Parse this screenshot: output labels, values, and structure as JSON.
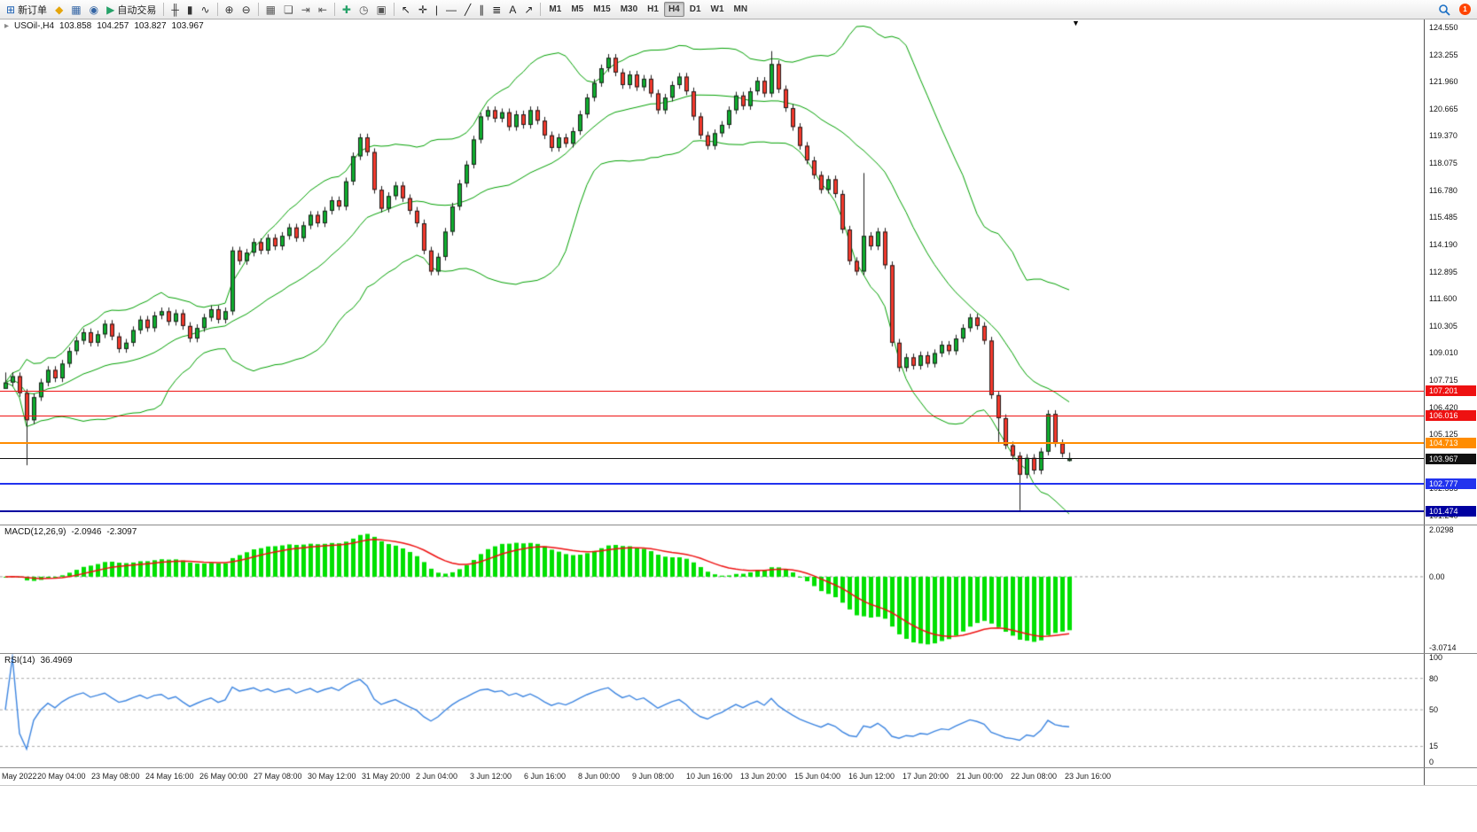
{
  "toolbar": {
    "groups": [
      {
        "name": "trade",
        "items": [
          {
            "name": "new-order-button",
            "label": "新订单",
            "glyph": "⊞",
            "color": "#1a5fb4"
          },
          {
            "name": "metaeditor-icon",
            "glyph": "◆",
            "color": "#e5a50a"
          },
          {
            "name": "charts-icon",
            "glyph": "▦",
            "color": "#3465a4"
          },
          {
            "name": "alerts-icon",
            "glyph": "◉",
            "color": "#3465a4"
          },
          {
            "name": "auto-trading-button",
            "label": "自动交易",
            "glyph": "▶",
            "color": "#26a269"
          }
        ]
      },
      {
        "name": "chart-type",
        "items": [
          {
            "name": "bar-chart-icon",
            "glyph": "╫",
            "color": "#333333"
          },
          {
            "name": "candlestick-icon",
            "glyph": "▮",
            "color": "#333333"
          },
          {
            "name": "line-chart-icon",
            "glyph": "∿",
            "color": "#333333"
          }
        ]
      },
      {
        "name": "zoom",
        "items": [
          {
            "name": "zoom-in-icon",
            "glyph": "⊕",
            "color": "#333333"
          },
          {
            "name": "zoom-out-icon",
            "glyph": "⊖",
            "color": "#333333"
          }
        ]
      },
      {
        "name": "windows",
        "items": [
          {
            "name": "tile-windows-icon",
            "glyph": "▦",
            "color": "#555555"
          },
          {
            "name": "cascade-windows-icon",
            "glyph": "❏",
            "color": "#555555"
          },
          {
            "name": "auto-scroll-icon",
            "glyph": "⇥",
            "color": "#555555"
          },
          {
            "name": "chart-shift-icon",
            "glyph": "⇤",
            "color": "#555555"
          }
        ]
      },
      {
        "name": "setup",
        "items": [
          {
            "name": "indicators-icon",
            "glyph": "✚",
            "color": "#26a269"
          },
          {
            "name": "periods-icon",
            "glyph": "◷",
            "color": "#555555"
          },
          {
            "name": "templates-icon",
            "glyph": "▣",
            "color": "#555555"
          }
        ]
      },
      {
        "name": "drawing",
        "items": [
          {
            "name": "cursor-icon",
            "glyph": "↖",
            "color": "#222222"
          },
          {
            "name": "crosshair-icon",
            "glyph": "✛",
            "color": "#222222"
          },
          {
            "name": "vertical-line-icon",
            "glyph": "|",
            "color": "#222222"
          },
          {
            "name": "horizontal-line-icon",
            "glyph": "—",
            "color": "#222222"
          },
          {
            "name": "trendline-icon",
            "glyph": "╱",
            "color": "#222222"
          },
          {
            "name": "channel-icon",
            "glyph": "∥",
            "color": "#222222"
          },
          {
            "name": "fibonacci-icon",
            "glyph": "≣",
            "color": "#222222"
          },
          {
            "name": "text-icon",
            "glyph": "A",
            "color": "#222222"
          },
          {
            "name": "arrows-icon",
            "glyph": "↗",
            "color": "#222222"
          }
        ]
      }
    ],
    "timeframes": [
      "M1",
      "M5",
      "M15",
      "M30",
      "H1",
      "H4",
      "D1",
      "W1",
      "MN"
    ],
    "active_timeframe": "H4",
    "notification_count": "1"
  },
  "chart": {
    "symbol_label": {
      "symbol": "USOil-,H4",
      "open": "103.858",
      "high": "104.257",
      "low": "103.827",
      "close": "103.967"
    },
    "one_click_glyph": "▸",
    "shift_marker_glyph": "▼",
    "price_axis_labels": [
      "124.550",
      "123.255",
      "121.960",
      "120.665",
      "119.370",
      "118.075",
      "116.780",
      "115.485",
      "114.190",
      "112.895",
      "111.600",
      "110.305",
      "109.010",
      "107.715",
      "106.420",
      "105.125",
      "103.830",
      "102.535",
      "101.240"
    ],
    "hlines": [
      {
        "name": "resistance-line-1",
        "price": 107.201,
        "label": "107.201",
        "color": "#ee1111",
        "thickness": 1
      },
      {
        "name": "resistance-line-2",
        "price": 106.016,
        "label": "106.016",
        "color": "#ee1111",
        "thickness": 1
      },
      {
        "name": "pivot-line",
        "price": 104.713,
        "label": "104.713",
        "color": "#ff8c00",
        "thickness": 2
      },
      {
        "name": "current-price-line",
        "price": 103.967,
        "label": "103.967",
        "color": "#111111",
        "thickness": 1
      },
      {
        "name": "support-line-1",
        "price": 102.777,
        "label": "102.777",
        "color": "#2233ee",
        "thickness": 2
      },
      {
        "name": "support-line-2",
        "price": 101.474,
        "label": "101.474",
        "color": "#0000a0",
        "thickness": 2
      }
    ]
  },
  "chart_data": {
    "type": "candlestick",
    "symbol": "USOil-",
    "timeframe": "H4",
    "grid": false,
    "last_candle": {
      "open": 103.858,
      "high": 104.257,
      "low": 103.827,
      "close": 103.967
    },
    "price_view": {
      "max": 124.93,
      "min": 100.82
    },
    "up_color": "#0fae2e",
    "down_color": "#f4392c",
    "closes": [
      107.6,
      107.9,
      107.1,
      105.8,
      106.9,
      107.6,
      108.2,
      107.8,
      108.5,
      109.1,
      109.6,
      110.0,
      109.5,
      109.9,
      110.4,
      109.8,
      109.2,
      109.5,
      110.1,
      110.6,
      110.2,
      110.8,
      111.0,
      110.5,
      110.9,
      110.3,
      109.7,
      110.2,
      110.7,
      111.1,
      110.6,
      111.0,
      113.9,
      113.4,
      113.8,
      114.3,
      113.9,
      114.5,
      114.1,
      114.6,
      115.0,
      114.5,
      115.1,
      115.6,
      115.2,
      115.8,
      116.3,
      116.0,
      117.2,
      118.4,
      119.3,
      118.6,
      116.8,
      115.9,
      116.5,
      117.0,
      116.4,
      115.8,
      115.2,
      113.9,
      112.9,
      113.6,
      114.8,
      116.0,
      117.1,
      118.0,
      119.2,
      120.3,
      120.6,
      120.2,
      120.5,
      119.8,
      120.4,
      119.9,
      120.6,
      120.1,
      119.4,
      118.8,
      119.3,
      119.0,
      119.6,
      120.4,
      121.2,
      121.9,
      122.6,
      123.1,
      122.4,
      121.8,
      122.3,
      121.7,
      122.1,
      121.4,
      120.6,
      121.2,
      121.8,
      122.2,
      121.5,
      120.3,
      119.4,
      118.9,
      119.5,
      119.9,
      120.6,
      121.3,
      120.8,
      121.5,
      122.0,
      121.4,
      122.8,
      121.6,
      120.7,
      119.8,
      118.9,
      118.2,
      117.5,
      116.8,
      117.3,
      116.6,
      114.9,
      113.4,
      112.9,
      114.6,
      114.1,
      114.8,
      113.2,
      109.5,
      108.3,
      108.8,
      108.4,
      108.9,
      108.5,
      109.0,
      109.4,
      109.1,
      109.7,
      110.2,
      110.7,
      110.3,
      109.6,
      107.0,
      105.9,
      104.6,
      104.1,
      103.2,
      104.0,
      103.4,
      104.3,
      106.1,
      104.7,
      104.2,
      103.97
    ],
    "wick": 0.18,
    "overrides": [
      {
        "i": 0,
        "open": 107.3
      },
      {
        "i": 3,
        "low": 103.65
      },
      {
        "i": 108,
        "high": 123.42
      },
      {
        "i": 121,
        "high": 117.6
      },
      {
        "i": 140,
        "low": 104.75
      },
      {
        "i": 143,
        "low": 101.48
      },
      {
        "i": 150,
        "open": 103.858,
        "high": 104.257,
        "low": 103.827,
        "close": 103.967
      }
    ],
    "bollinger": {
      "period": 20,
      "deviation": 2,
      "color": "#00A000"
    },
    "macd": {
      "label": "MACD(12,26,9)",
      "value_main": "-2.0946",
      "value_signal": "-2.3097",
      "fast": 12,
      "slow": 26,
      "signal": 9,
      "axis_labels": [
        "2.0298",
        "0.00",
        "-3.0714"
      ],
      "view": {
        "max": 2.22,
        "min": -3.3
      },
      "hist_color": "#00e000",
      "signal_color": "#ee1111"
    },
    "rsi": {
      "label": "RSI(14)",
      "value": "36.4969",
      "period": 14,
      "axis_labels": [
        "100",
        "80",
        "50",
        "15",
        "0"
      ],
      "levels": [
        80,
        50,
        15
      ],
      "view": {
        "max": 103.4,
        "min": -5.0
      },
      "line_color": "#3d85e0"
    }
  },
  "time_axis": {
    "labels": [
      "May 2022",
      "20 May 04:00",
      "23 May 08:00",
      "24 May 16:00",
      "26 May 00:00",
      "27 May 08:00",
      "30 May 12:00",
      "31 May 20:00",
      "2 Jun 04:00",
      "3 Jun 12:00",
      "6 Jun 16:00",
      "8 Jun 00:00",
      "9 Jun 08:00",
      "10 Jun 16:00",
      "13 Jun 20:00",
      "15 Jun 04:00",
      "16 Jun 12:00",
      "17 Jun 20:00",
      "21 Jun 00:00",
      "22 Jun 08:00",
      "23 Jun 16:00"
    ]
  }
}
